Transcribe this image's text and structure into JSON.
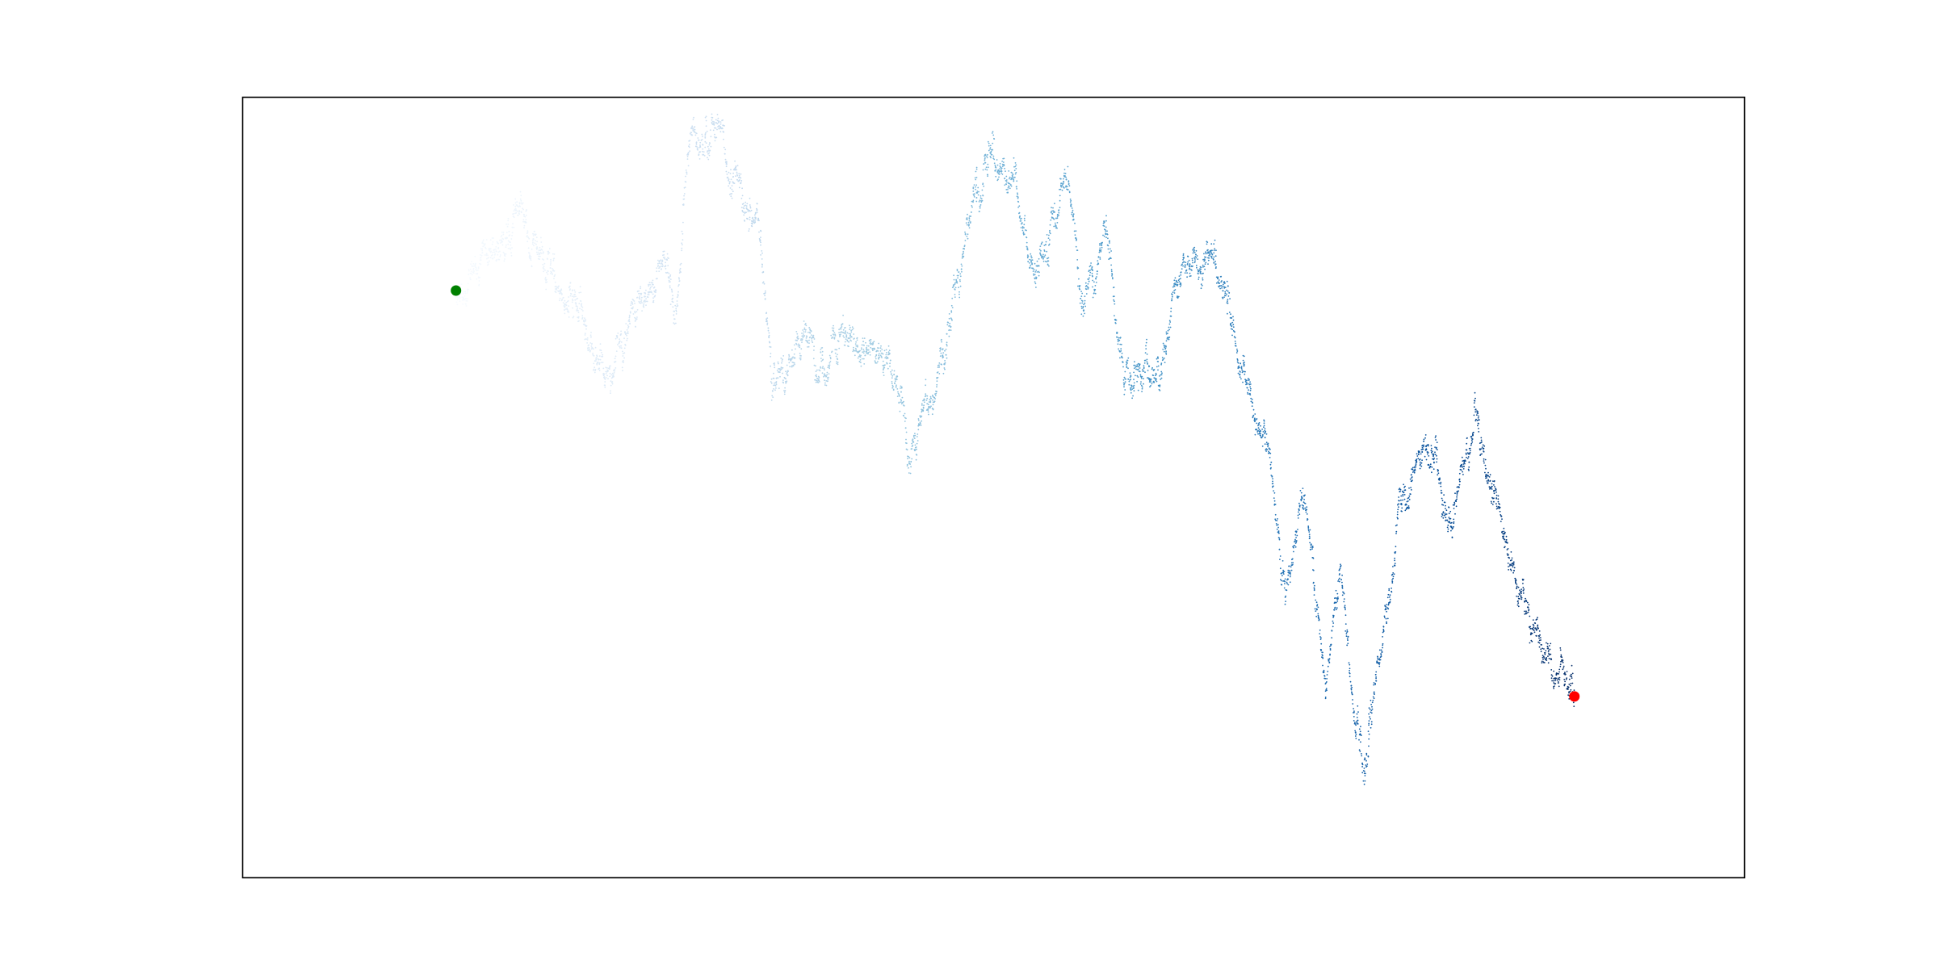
{
  "chart_data": {
    "type": "scatter",
    "title": "",
    "xlabel": "",
    "ylabel": "",
    "axes_visible": false,
    "grid": false,
    "legend": "none",
    "colormap": "Blues",
    "walk_points": 5000,
    "anchors": [
      [
        0,
        0.0
      ],
      [
        22,
        0.51
      ],
      [
        30,
        0.12
      ],
      [
        42,
        -0.19
      ],
      [
        52,
        -0.65
      ],
      [
        60,
        -0.22
      ],
      [
        70,
        0.19
      ],
      [
        72,
        0.26
      ],
      [
        75,
        -0.19
      ],
      [
        80,
        0.93
      ],
      [
        88,
        1.1
      ],
      [
        95,
        0.8
      ],
      [
        103,
        0.39
      ],
      [
        108,
        -0.61
      ],
      [
        116,
        -0.37
      ],
      [
        125,
        -0.47
      ],
      [
        135,
        -0.42
      ],
      [
        142,
        -0.43
      ],
      [
        150,
        -0.6
      ],
      [
        155,
        -1.3
      ],
      [
        165,
        -0.61
      ],
      [
        175,
        0.54
      ],
      [
        182,
        1.01
      ],
      [
        190,
        0.84
      ],
      [
        198,
        0.04
      ],
      [
        208,
        0.85
      ],
      [
        215,
        -0.22
      ],
      [
        222,
        0.46
      ],
      [
        228,
        -0.62
      ],
      [
        240,
        -0.61
      ],
      [
        248,
        0.14
      ],
      [
        258,
        0.27
      ],
      [
        263,
        -0.07
      ],
      [
        270,
        -0.71
      ],
      [
        278,
        -1.15
      ],
      [
        283,
        -2.1
      ],
      [
        290,
        -1.41
      ],
      [
        297,
        -2.8
      ],
      [
        302,
        -2.05
      ],
      [
        310,
        -3.4
      ],
      [
        322,
        -1.65
      ],
      [
        332,
        -1.05
      ],
      [
        340,
        -1.6
      ],
      [
        348,
        -0.93
      ],
      [
        355,
        -1.47
      ],
      [
        365,
        -2.23
      ],
      [
        377,
        -2.7
      ],
      [
        382,
        -2.85
      ]
    ],
    "start_point": {
      "x": 0,
      "y": 0.0,
      "color": "#008000"
    },
    "end_point": {
      "x": 382,
      "y": -2.85,
      "color": "#ff0000"
    },
    "xlim": [
      -73,
      440
    ],
    "ylim": [
      -4.12,
      1.36
    ]
  }
}
